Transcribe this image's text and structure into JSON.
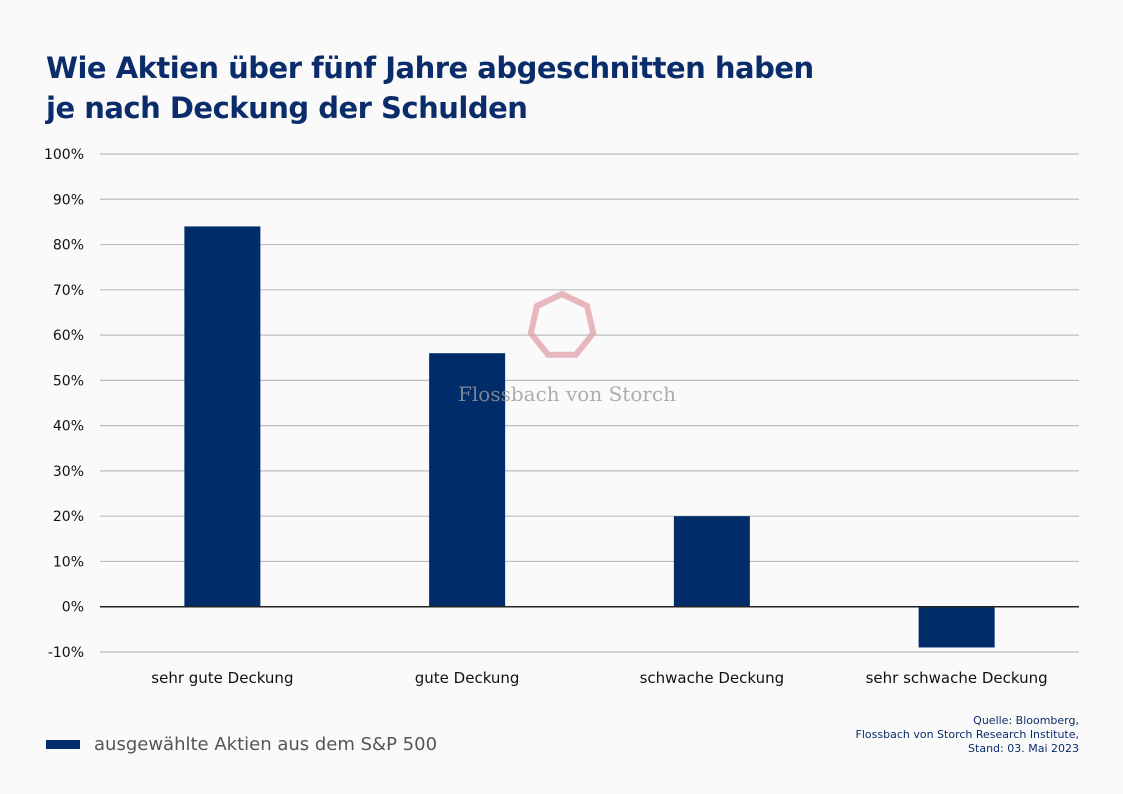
{
  "title_line1": "Wie Aktien über fünf Jahre abgeschnitten haben",
  "title_line2": "je nach Deckung der Schulden",
  "watermark": "Flossbach von Storch",
  "legend_label": "ausgewählte Aktien aus dem S&P 500",
  "source": {
    "line1": "Quelle: Bloomberg,",
    "line2": "Flossbach von Storch Research Institute,",
    "line3": "Stand: 03. Mai 2023"
  },
  "colors": {
    "bar": "#002d6a",
    "grid": "#bdbdbd",
    "title": "#0b2c6b",
    "watermark": "#e0a0a8"
  },
  "chart_data": {
    "type": "bar",
    "title": "Wie Aktien über fünf Jahre abgeschnitten haben je nach Deckung der Schulden",
    "categories": [
      "sehr gute Deckung",
      "gute Deckung",
      "schwache Deckung",
      "sehr schwache Deckung"
    ],
    "series": [
      {
        "name": "ausgewählte Aktien aus dem S&P 500",
        "values": [
          84,
          56,
          20,
          -9
        ]
      }
    ],
    "ylim": [
      -10,
      100
    ],
    "yticks": [
      -10,
      0,
      10,
      20,
      30,
      40,
      50,
      60,
      70,
      80,
      90,
      100
    ],
    "ytick_labels": [
      "-10%",
      "0%",
      "10%",
      "20%",
      "30%",
      "40%",
      "50%",
      "60%",
      "70%",
      "80%",
      "90%",
      "100%"
    ],
    "grid": true,
    "legend": "bottom-left"
  }
}
